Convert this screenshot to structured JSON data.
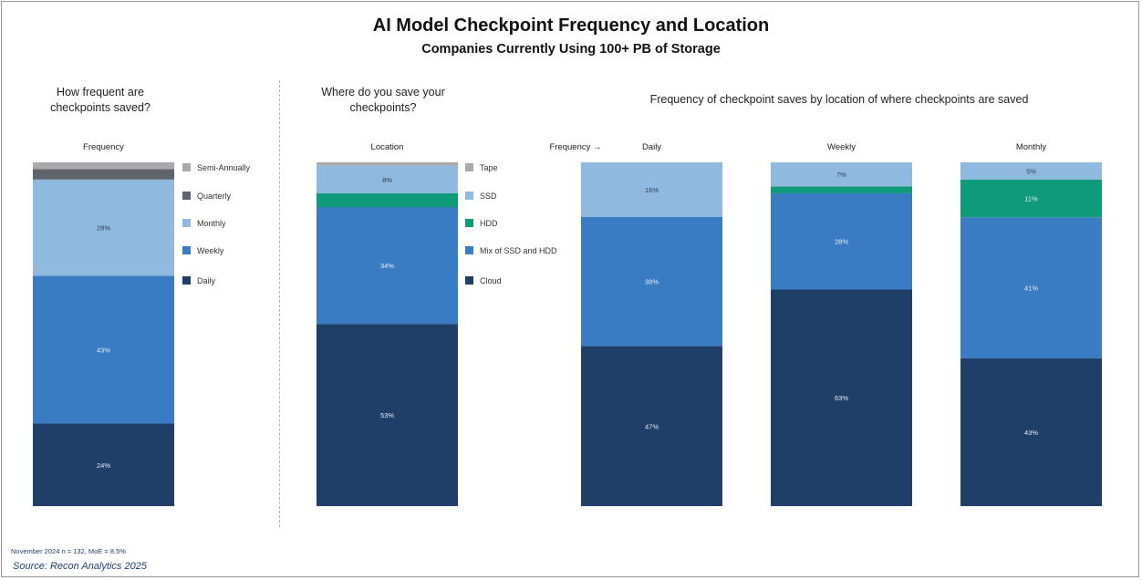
{
  "header": {
    "title": "AI Model Checkpoint Frequency and Location",
    "subtitle": "Companies Currently Using 100+ PB of Storage"
  },
  "questions": {
    "frequency": "How frequent are checkpoints saved?",
    "location": "Where do you save your checkpoints?",
    "cross": "Frequency of checkpoint saves by location of where checkpoints are saved"
  },
  "labels": {
    "frequency": "Frequency",
    "location": "Location",
    "frequency_arrow": "Frequency →",
    "daily": "Daily",
    "weekly": "Weekly",
    "monthly": "Monthly"
  },
  "footer": {
    "note": "November 2024  n = 132, MoE = 8.5%",
    "source": "Source: Recon Analytics 2025"
  },
  "colors": {
    "semi_annually": "#a9a9ad",
    "quarterly": "#5f636b",
    "monthly": "#8fb9df",
    "weekly": "#3a7cc3",
    "daily": "#1f3f69",
    "tape": "#a9a9ad",
    "ssd": "#8fb9df",
    "hdd": "#0f9a7a",
    "mix": "#3a7cc3",
    "cloud": "#1f3f69"
  },
  "chart_data": [
    {
      "type": "bar",
      "stacked": true,
      "title": "Frequency",
      "categories": [
        "Frequency"
      ],
      "series": [
        {
          "name": "Daily",
          "values": [
            24
          ],
          "label": "24%"
        },
        {
          "name": "Weekly",
          "values": [
            43
          ],
          "label": "43%"
        },
        {
          "name": "Monthly",
          "values": [
            28
          ],
          "label": "28%"
        },
        {
          "name": "Quarterly",
          "values": [
            3
          ],
          "label": ""
        },
        {
          "name": "Semi-Annually",
          "values": [
            2
          ],
          "label": ""
        }
      ],
      "ylim": [
        0,
        100
      ],
      "legend": "right"
    },
    {
      "type": "bar",
      "stacked": true,
      "title": "Location",
      "categories": [
        "Location"
      ],
      "series": [
        {
          "name": "Cloud",
          "values": [
            53
          ],
          "label": "53%"
        },
        {
          "name": "Mix of SSD and HDD",
          "values": [
            34
          ],
          "label": "34%"
        },
        {
          "name": "HDD",
          "values": [
            4
          ],
          "label": ""
        },
        {
          "name": "SSD",
          "values": [
            8
          ],
          "label": "8%"
        },
        {
          "name": "Tape",
          "values": [
            1
          ],
          "label": ""
        }
      ],
      "ylim": [
        0,
        100
      ],
      "legend": "right"
    },
    {
      "type": "bar",
      "stacked": true,
      "categories": [
        "Daily",
        "Weekly",
        "Monthly"
      ],
      "series": [
        {
          "name": "Cloud",
          "values": [
            47,
            63,
            43
          ],
          "labels": [
            "47%",
            "63%",
            "43%"
          ]
        },
        {
          "name": "Mix of SSD and HDD",
          "values": [
            38,
            28,
            41
          ],
          "labels": [
            "38%",
            "28%",
            "41%"
          ]
        },
        {
          "name": "HDD",
          "values": [
            0,
            2,
            11
          ],
          "labels": [
            "",
            "",
            "11%"
          ]
        },
        {
          "name": "SSD",
          "values": [
            16,
            7,
            5
          ],
          "labels": [
            "16%",
            "7%",
            "5%"
          ]
        }
      ],
      "ylim": [
        0,
        100
      ]
    }
  ]
}
